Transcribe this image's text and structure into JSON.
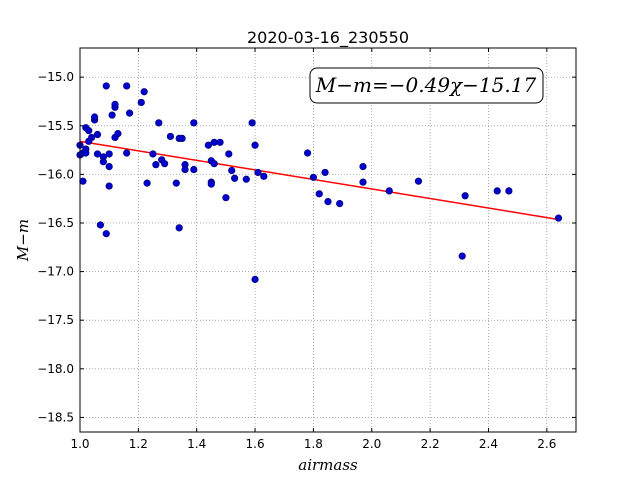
{
  "chart_data": {
    "type": "scatter",
    "title": "2020-03-16_230550",
    "xlabel": "airmass",
    "ylabel": "M−m",
    "xlim": [
      1.0,
      2.7
    ],
    "ylim": [
      -14.7,
      -18.65
    ],
    "y_inverted": true,
    "x_ticks": [
      1.0,
      1.2,
      1.4,
      1.6,
      1.8,
      2.0,
      2.2,
      2.4,
      2.6
    ],
    "x_tick_labels": [
      "1.0",
      "1.2",
      "1.4",
      "1.6",
      "1.8",
      "2.0",
      "2.2",
      "2.4",
      "2.6"
    ],
    "y_ticks": [
      -15.0,
      -15.5,
      -16.0,
      -16.5,
      -17.0,
      -17.5,
      -18.0,
      -18.5
    ],
    "y_tick_labels": [
      "−15.0",
      "−15.5",
      "−16.0",
      "−16.5",
      "−17.0",
      "−17.5",
      "−18.0",
      "−18.5"
    ],
    "grid": true,
    "annotation": "M−m=−0.49χ−15.17",
    "fit_line": {
      "slope": -0.49,
      "intercept": -15.17,
      "x_range": [
        1.0,
        2.64
      ],
      "color": "#ff0000"
    },
    "marker_color": "#0000cc",
    "points": [
      {
        "x": 1.0,
        "y": -15.7
      },
      {
        "x": 1.0,
        "y": -15.8
      },
      {
        "x": 1.01,
        "y": -15.78
      },
      {
        "x": 1.01,
        "y": -16.07
      },
      {
        "x": 1.02,
        "y": -15.74
      },
      {
        "x": 1.02,
        "y": -15.78
      },
      {
        "x": 1.02,
        "y": -15.52
      },
      {
        "x": 1.03,
        "y": -15.55
      },
      {
        "x": 1.03,
        "y": -15.66
      },
      {
        "x": 1.04,
        "y": -15.62
      },
      {
        "x": 1.05,
        "y": -15.44
      },
      {
        "x": 1.05,
        "y": -15.41
      },
      {
        "x": 1.06,
        "y": -15.59
      },
      {
        "x": 1.06,
        "y": -15.79
      },
      {
        "x": 1.07,
        "y": -16.52
      },
      {
        "x": 1.08,
        "y": -15.82
      },
      {
        "x": 1.08,
        "y": -15.87
      },
      {
        "x": 1.09,
        "y": -15.09
      },
      {
        "x": 1.09,
        "y": -16.61
      },
      {
        "x": 1.1,
        "y": -16.12
      },
      {
        "x": 1.1,
        "y": -15.79
      },
      {
        "x": 1.1,
        "y": -15.92
      },
      {
        "x": 1.11,
        "y": -15.39
      },
      {
        "x": 1.12,
        "y": -15.31
      },
      {
        "x": 1.12,
        "y": -15.28
      },
      {
        "x": 1.12,
        "y": -15.62
      },
      {
        "x": 1.13,
        "y": -15.58
      },
      {
        "x": 1.16,
        "y": -15.09
      },
      {
        "x": 1.16,
        "y": -15.78
      },
      {
        "x": 1.17,
        "y": -15.37
      },
      {
        "x": 1.21,
        "y": -15.26
      },
      {
        "x": 1.22,
        "y": -15.15
      },
      {
        "x": 1.23,
        "y": -16.09
      },
      {
        "x": 1.25,
        "y": -15.79
      },
      {
        "x": 1.26,
        "y": -15.9
      },
      {
        "x": 1.27,
        "y": -15.47
      },
      {
        "x": 1.28,
        "y": -15.85
      },
      {
        "x": 1.29,
        "y": -15.89
      },
      {
        "x": 1.31,
        "y": -15.61
      },
      {
        "x": 1.33,
        "y": -16.09
      },
      {
        "x": 1.34,
        "y": -16.55
      },
      {
        "x": 1.34,
        "y": -15.63
      },
      {
        "x": 1.35,
        "y": -15.63
      },
      {
        "x": 1.36,
        "y": -15.9
      },
      {
        "x": 1.36,
        "y": -15.95
      },
      {
        "x": 1.39,
        "y": -15.47
      },
      {
        "x": 1.39,
        "y": -15.95
      },
      {
        "x": 1.44,
        "y": -15.7
      },
      {
        "x": 1.45,
        "y": -15.86
      },
      {
        "x": 1.45,
        "y": -16.08
      },
      {
        "x": 1.45,
        "y": -16.1
      },
      {
        "x": 1.46,
        "y": -15.67
      },
      {
        "x": 1.46,
        "y": -15.89
      },
      {
        "x": 1.48,
        "y": -15.67
      },
      {
        "x": 1.5,
        "y": -16.24
      },
      {
        "x": 1.51,
        "y": -15.79
      },
      {
        "x": 1.52,
        "y": -15.96
      },
      {
        "x": 1.53,
        "y": -16.04
      },
      {
        "x": 1.57,
        "y": -16.05
      },
      {
        "x": 1.59,
        "y": -15.47
      },
      {
        "x": 1.6,
        "y": -15.7
      },
      {
        "x": 1.61,
        "y": -15.98
      },
      {
        "x": 1.6,
        "y": -17.08
      },
      {
        "x": 1.63,
        "y": -16.02
      },
      {
        "x": 1.78,
        "y": -15.78
      },
      {
        "x": 1.8,
        "y": -16.03
      },
      {
        "x": 1.82,
        "y": -16.2
      },
      {
        "x": 1.84,
        "y": -15.98
      },
      {
        "x": 1.85,
        "y": -16.28
      },
      {
        "x": 1.89,
        "y": -16.3
      },
      {
        "x": 1.97,
        "y": -15.92
      },
      {
        "x": 1.97,
        "y": -16.08
      },
      {
        "x": 2.06,
        "y": -16.17
      },
      {
        "x": 2.16,
        "y": -16.07
      },
      {
        "x": 2.31,
        "y": -16.84
      },
      {
        "x": 2.32,
        "y": -16.22
      },
      {
        "x": 2.43,
        "y": -16.17
      },
      {
        "x": 2.47,
        "y": -16.17
      },
      {
        "x": 2.64,
        "y": -16.45
      }
    ]
  }
}
